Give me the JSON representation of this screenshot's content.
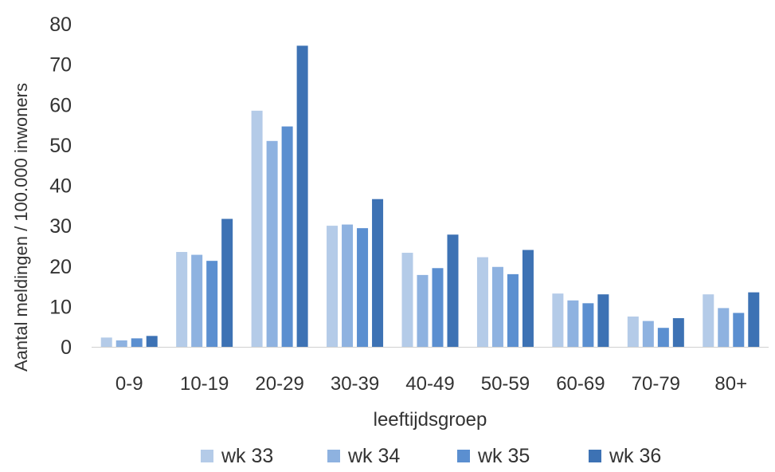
{
  "chart_data": {
    "type": "bar",
    "title": "",
    "xlabel": "leeftijdsgroep",
    "ylabel": "Aantal meldingen / 100.000 inwoners",
    "ylim": [
      0,
      80
    ],
    "yticks": [
      0,
      10,
      20,
      30,
      40,
      50,
      60,
      70,
      80
    ],
    "grid": false,
    "legend_position": "bottom",
    "categories": [
      "0-9",
      "10-19",
      "20-29",
      "30-39",
      "40-49",
      "50-59",
      "60-69",
      "70-79",
      "80+"
    ],
    "series": [
      {
        "name": "wk 33",
        "color": "#b4cbe8",
        "values": [
          2.3,
          23.5,
          58.5,
          30.0,
          23.3,
          22.2,
          13.2,
          7.5,
          13.0
        ]
      },
      {
        "name": "wk 34",
        "color": "#8eb2e0",
        "values": [
          1.6,
          22.8,
          51.0,
          30.3,
          17.8,
          19.8,
          11.5,
          6.4,
          9.6
        ]
      },
      {
        "name": "wk 35",
        "color": "#5b8fd0",
        "values": [
          2.1,
          21.3,
          54.6,
          29.4,
          19.5,
          18.0,
          10.8,
          4.7,
          8.4
        ]
      },
      {
        "name": "wk 36",
        "color": "#3d72b4",
        "values": [
          2.7,
          31.7,
          74.6,
          36.6,
          27.8,
          24.0,
          13.0,
          7.1,
          13.5
        ]
      }
    ]
  }
}
